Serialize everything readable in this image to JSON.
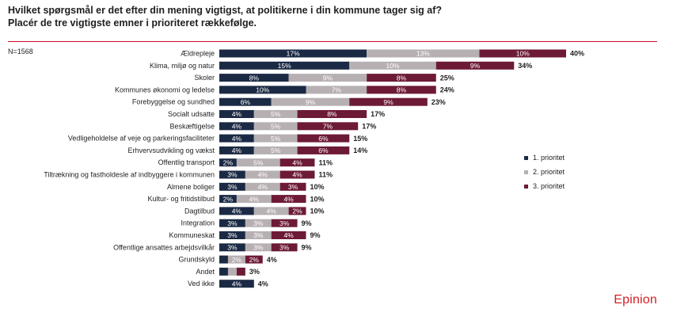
{
  "title_line1": "Hvilket spørgsmål er det efter din mening vigtigst, at politikerne i din kommune tager sig af?",
  "title_line2": " Placér de tre vigtigste emner i prioriteret rækkefølge.",
  "sample_label": "N=1568",
  "brand": "Epinion",
  "colors": {
    "p1": "#1b2a44",
    "p2": "#b7b0b3",
    "p3": "#6d1a36",
    "accent": "#c8102e"
  },
  "chart_data": {
    "type": "bar",
    "orientation": "horizontal",
    "stacked": true,
    "categories": [
      "Ældrepleje",
      "Klima, miljø og natur",
      "Skoler",
      "Kommunes økonomi og ledelse",
      "Forebyggelse og sundhed",
      "Socialt udsatte",
      "Beskæftigelse",
      "Vedligeholdelse af veje og parkeringsfaciliteter",
      "Erhvervsudvikling og vækst",
      "Offentlig transport",
      "Tiltrækning og fastholdesle af indbyggere i kommunen",
      "Almene boliger",
      "Kultur- og fritidstilbud",
      "Dagtilbud",
      "Integration",
      "Kommuneskat",
      "Offentlige ansattes arbejdsvilkår",
      "Grundskyld",
      "Andet",
      "Ved ikke"
    ],
    "series": [
      {
        "name": "1. prioritet",
        "values": [
          17,
          15,
          8,
          10,
          6,
          4,
          4,
          4,
          4,
          2,
          3,
          3,
          2,
          4,
          3,
          3,
          3,
          1,
          1,
          4
        ]
      },
      {
        "name": "2. prioritet",
        "values": [
          13,
          10,
          9,
          7,
          9,
          5,
          5,
          5,
          5,
          5,
          4,
          4,
          4,
          4,
          3,
          3,
          3,
          2,
          1,
          0
        ]
      },
      {
        "name": "3. prioritet",
        "values": [
          10,
          9,
          8,
          8,
          9,
          8,
          7,
          6,
          6,
          4,
          4,
          3,
          4,
          2,
          3,
          4,
          3,
          2,
          1,
          0
        ]
      }
    ],
    "segment_labels": [
      [
        "17%",
        "13%",
        "10%"
      ],
      [
        "15%",
        "10%",
        "9%"
      ],
      [
        "8%",
        "9%",
        "8%"
      ],
      [
        "10%",
        "7%",
        "8%"
      ],
      [
        "6%",
        "9%",
        "9%"
      ],
      [
        "4%",
        "5%",
        "8%"
      ],
      [
        "4%",
        "5%",
        "7%"
      ],
      [
        "4%",
        "5%",
        "6%"
      ],
      [
        "4%",
        "5%",
        "6%"
      ],
      [
        "2%",
        "5%",
        "4%"
      ],
      [
        "3%",
        "4%",
        "4%"
      ],
      [
        "3%",
        "4%",
        "3%"
      ],
      [
        "2%",
        "4%",
        "4%"
      ],
      [
        "4%",
        "4%",
        "2%"
      ],
      [
        "3%",
        "3%",
        "3%"
      ],
      [
        "3%",
        "3%",
        "4%"
      ],
      [
        "3%",
        "3%",
        "3%"
      ],
      [
        "",
        "2%",
        "2%"
      ],
      [
        "",
        "",
        ""
      ],
      [
        "4%",
        "",
        ""
      ]
    ],
    "totals": [
      "40%",
      "34%",
      "25%",
      "24%",
      "23%",
      "17%",
      "17%",
      "15%",
      "14%",
      "11%",
      "11%",
      "10%",
      "10%",
      "10%",
      "9%",
      "9%",
      "9%",
      "4%",
      "3%",
      "4%"
    ],
    "xlim": [
      0,
      40
    ],
    "grid": false,
    "legend_position": "right"
  }
}
